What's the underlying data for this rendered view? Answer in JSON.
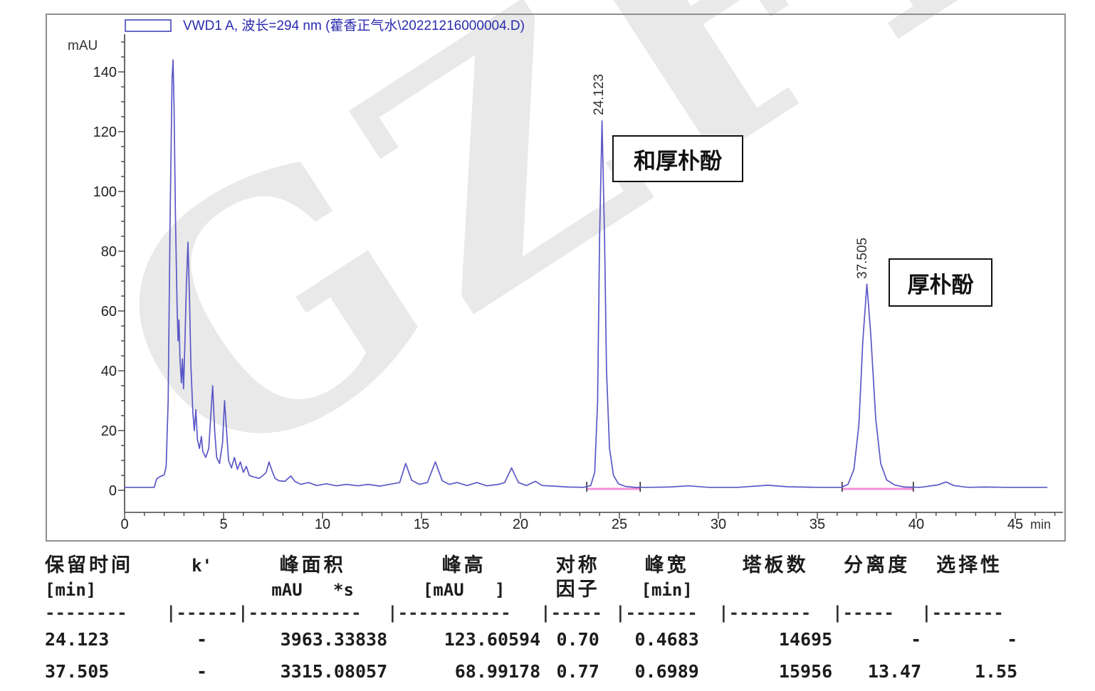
{
  "watermark": "GZFLM",
  "legend": {
    "label": "VWD1 A, 波长=294 nm (藿香正气水\\20221216000004.D)"
  },
  "axes": {
    "y_unit": "mAU",
    "x_unit": "min"
  },
  "peaks": [
    {
      "rt": "24.123",
      "name": "和厚朴酚"
    },
    {
      "rt": "37.505",
      "name": "厚朴酚"
    }
  ],
  "chart_data": {
    "type": "line",
    "title": "VWD1 A, 波长=294 nm (藿香正气水\\20221216000004.D)",
    "xlabel": "min",
    "ylabel": "mAU",
    "xlim": [
      0,
      46.8
    ],
    "ylim": [
      -4,
      155
    ],
    "x_major_ticks": [
      0,
      5,
      10,
      15,
      20,
      25,
      30,
      35,
      40,
      45
    ],
    "y_major_ticks": [
      0,
      20,
      40,
      60,
      80,
      100,
      120,
      140
    ],
    "x_minor_step": 1,
    "y_minor_step": 5,
    "grid": false,
    "legend_position": "top-left",
    "trace_color": "#5a58c6",
    "baseline_color": "#f390d8",
    "series": [
      {
        "name": "VWD1 A signal",
        "points": [
          [
            0,
            1
          ],
          [
            1.5,
            1
          ],
          [
            1.62,
            3.8
          ],
          [
            1.8,
            4.6
          ],
          [
            2.0,
            5.2
          ],
          [
            2.1,
            8
          ],
          [
            2.2,
            30
          ],
          [
            2.3,
            90
          ],
          [
            2.4,
            138
          ],
          [
            2.45,
            144
          ],
          [
            2.5,
            128
          ],
          [
            2.57,
            92
          ],
          [
            2.65,
            62
          ],
          [
            2.7,
            50
          ],
          [
            2.75,
            57
          ],
          [
            2.8,
            44
          ],
          [
            2.87,
            36
          ],
          [
            2.92,
            44
          ],
          [
            2.98,
            34
          ],
          [
            3.05,
            50
          ],
          [
            3.12,
            68
          ],
          [
            3.2,
            83
          ],
          [
            3.28,
            64
          ],
          [
            3.35,
            42
          ],
          [
            3.45,
            26
          ],
          [
            3.52,
            20
          ],
          [
            3.6,
            27
          ],
          [
            3.68,
            17
          ],
          [
            3.78,
            14
          ],
          [
            3.88,
            18
          ],
          [
            3.95,
            13
          ],
          [
            4.1,
            11
          ],
          [
            4.25,
            14
          ],
          [
            4.45,
            35
          ],
          [
            4.55,
            20
          ],
          [
            4.65,
            11
          ],
          [
            4.8,
            9
          ],
          [
            4.95,
            16
          ],
          [
            5.05,
            30
          ],
          [
            5.15,
            20
          ],
          [
            5.25,
            10
          ],
          [
            5.4,
            7.5
          ],
          [
            5.55,
            11
          ],
          [
            5.7,
            7
          ],
          [
            5.85,
            9.5
          ],
          [
            6.0,
            6
          ],
          [
            6.15,
            8
          ],
          [
            6.3,
            5
          ],
          [
            6.5,
            4.5
          ],
          [
            6.8,
            4
          ],
          [
            7.0,
            5
          ],
          [
            7.15,
            6
          ],
          [
            7.3,
            9.5
          ],
          [
            7.45,
            6.5
          ],
          [
            7.6,
            4
          ],
          [
            7.8,
            3.2
          ],
          [
            8.1,
            3
          ],
          [
            8.4,
            4.8
          ],
          [
            8.6,
            3
          ],
          [
            8.9,
            2
          ],
          [
            9.3,
            2.6
          ],
          [
            9.7,
            1.6
          ],
          [
            10.2,
            2.2
          ],
          [
            10.7,
            1.5
          ],
          [
            11.2,
            2
          ],
          [
            11.8,
            1.5
          ],
          [
            12.3,
            2
          ],
          [
            12.9,
            1.4
          ],
          [
            13.4,
            2
          ],
          [
            13.9,
            2.6
          ],
          [
            14.2,
            9
          ],
          [
            14.5,
            3.4
          ],
          [
            14.9,
            2
          ],
          [
            15.3,
            2.6
          ],
          [
            15.7,
            9.5
          ],
          [
            16.05,
            3.2
          ],
          [
            16.4,
            2
          ],
          [
            16.8,
            2.6
          ],
          [
            17.3,
            1.6
          ],
          [
            17.8,
            2.6
          ],
          [
            18.3,
            1.5
          ],
          [
            18.9,
            2
          ],
          [
            19.2,
            2.6
          ],
          [
            19.55,
            7.5
          ],
          [
            19.9,
            2.6
          ],
          [
            20.3,
            1.6
          ],
          [
            20.75,
            3
          ],
          [
            21.1,
            1.6
          ],
          [
            21.7,
            1.4
          ],
          [
            22.4,
            1.1
          ],
          [
            23.2,
            1
          ],
          [
            23.55,
            1.6
          ],
          [
            23.75,
            6
          ],
          [
            23.9,
            30
          ],
          [
            24.0,
            85
          ],
          [
            24.123,
            123.6
          ],
          [
            24.25,
            85
          ],
          [
            24.35,
            40
          ],
          [
            24.5,
            14
          ],
          [
            24.7,
            5
          ],
          [
            24.95,
            2.2
          ],
          [
            25.3,
            1.3
          ],
          [
            25.8,
            1
          ],
          [
            26.5,
            1
          ],
          [
            27.5,
            1.1
          ],
          [
            28.5,
            1.5
          ],
          [
            29.5,
            1
          ],
          [
            31,
            1
          ],
          [
            32.5,
            1.7
          ],
          [
            33.5,
            1.2
          ],
          [
            35,
            1
          ],
          [
            36.2,
            1
          ],
          [
            36.55,
            2
          ],
          [
            36.85,
            7
          ],
          [
            37.1,
            22
          ],
          [
            37.3,
            50
          ],
          [
            37.505,
            69
          ],
          [
            37.7,
            52
          ],
          [
            37.95,
            24
          ],
          [
            38.2,
            9
          ],
          [
            38.5,
            3.5
          ],
          [
            38.9,
            1.8
          ],
          [
            39.4,
            1.1
          ],
          [
            40.2,
            1
          ],
          [
            41.1,
            1.8
          ],
          [
            41.5,
            2.8
          ],
          [
            41.9,
            1.6
          ],
          [
            42.6,
            1
          ],
          [
            43.5,
            1.1
          ],
          [
            44.5,
            1
          ],
          [
            45.5,
            1
          ],
          [
            46.6,
            1
          ]
        ]
      }
    ],
    "baselines": [
      [
        23.35,
        26.05
      ],
      [
        36.25,
        39.85
      ]
    ],
    "annotated_peaks": [
      {
        "rt": 24.123,
        "height": 123.60594,
        "label": "24.123",
        "compound": "和厚朴酚"
      },
      {
        "rt": 37.505,
        "height": 68.99178,
        "label": "37.505",
        "compound": "厚朴酚"
      }
    ]
  },
  "table": {
    "header_line1": [
      "保留时间",
      "k'",
      "峰面积",
      "峰高",
      "对称",
      "峰宽",
      "塔板数",
      "分离度",
      "选择性"
    ],
    "header_line2": [
      "[min]",
      "",
      "mAU   *s",
      "[mAU   ]",
      "因子",
      "[min]",
      "",
      "",
      ""
    ],
    "separator": [
      "--------",
      "|------",
      "|-----------",
      "|-----------",
      "|-----",
      "|-------",
      "|--------",
      "|-----",
      "|-------"
    ],
    "rows": [
      [
        "24.123",
        "-",
        "3963.33838",
        "123.60594",
        "0.70",
        "0.4683",
        "14695",
        "-",
        "-"
      ],
      [
        "37.505",
        "-",
        "3315.08057",
        "68.99178",
        "0.77",
        "0.6989",
        "15956",
        "13.47",
        "1.55"
      ]
    ]
  }
}
